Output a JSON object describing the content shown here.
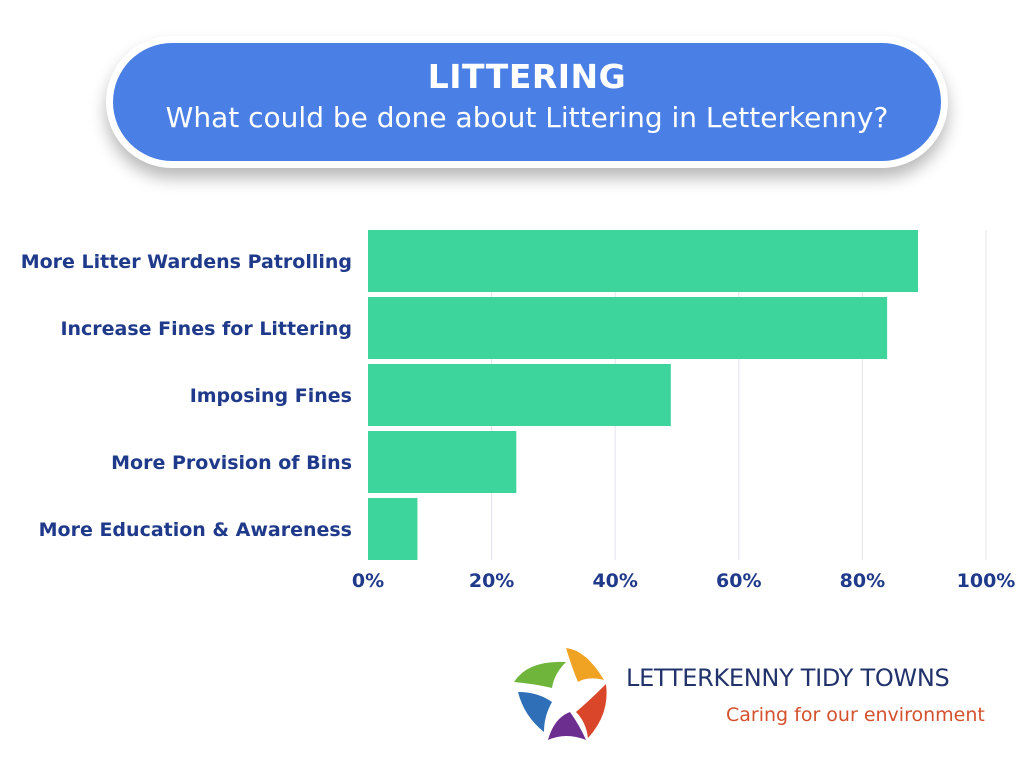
{
  "banner": {
    "title": "LITTERING",
    "subtitle": "What could be done about Littering in Letterkenny?"
  },
  "chart_data": {
    "type": "bar",
    "orientation": "horizontal",
    "categories": [
      "More Litter Wardens Patrolling",
      "Increase Fines for Littering",
      "Imposing Fines",
      "More Provision of Bins",
      "More Education & Awareness"
    ],
    "values": [
      89,
      84,
      49,
      24,
      8
    ],
    "unit": "%",
    "xlim": [
      0,
      100
    ],
    "xticks": [
      "0%",
      "20%",
      "40%",
      "60%",
      "80%",
      "100%"
    ],
    "grid": true,
    "bar_color": "#3dd59b",
    "label_color": "#1f3a8a"
  },
  "logo": {
    "name": "LETTERKENNY TIDY TOWNS",
    "tagline": "Caring for our environment",
    "icon": "tidy-towns-people-star-icon"
  },
  "colors": {
    "banner": "#4a7fe6",
    "bars": "#3dd59b",
    "labels": "#1f3a8a",
    "logo_name": "#22336b",
    "logo_tagline": "#d4512d"
  }
}
